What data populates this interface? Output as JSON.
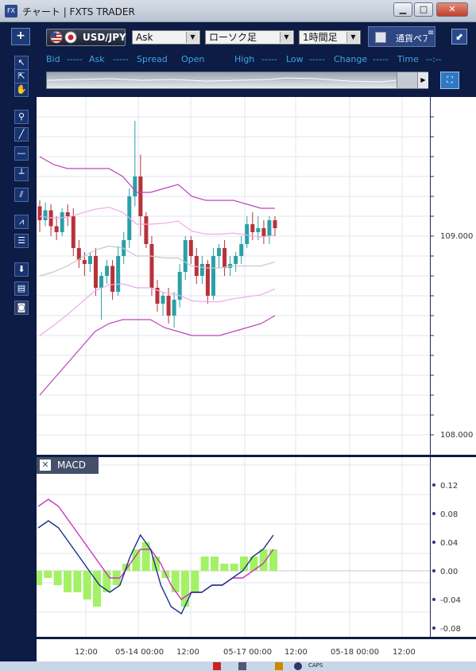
{
  "window": {
    "title": "チャート | FXTS TRADER",
    "icon": "FX"
  },
  "toolbar": {
    "symbol": "USD/JPY",
    "price_type": "Ask",
    "chart_type": "ローソク足",
    "timeframe": "1時間足",
    "currency_tab": "通貨ペア",
    "add_label": "+"
  },
  "quote": {
    "bid_label": "Bid",
    "bid": "-----",
    "ask_label": "Ask",
    "ask": "-----",
    "spread_label": "Spread",
    "open_label": "Open",
    "high_label": "High",
    "high": "-----",
    "low_label": "Low",
    "low": "-----",
    "change_label": "Change",
    "change": "-----",
    "time_label": "Time",
    "time": "--:--"
  },
  "price_axis": {
    "ticks": [
      "109.000",
      "108.000"
    ]
  },
  "macd": {
    "label": "MACD",
    "ticks": [
      "0.12",
      "0.08",
      "0.04",
      "0.00",
      "-0.04",
      "-0.08"
    ],
    "tick_values": [
      0.12,
      0.08,
      0.04,
      0.0,
      -0.04,
      -0.08
    ]
  },
  "time_axis": {
    "labels": [
      "12:00",
      "05-14 00:00",
      "12:00",
      "05-17 00:00",
      "12:00",
      "05-18 00:00",
      "12:00"
    ]
  },
  "taskbar": {
    "caps": "CAPS"
  },
  "colors": {
    "candle_up": "#2aa0a8",
    "candle_down": "#b8323a",
    "band_outer": "#bb44bb",
    "band_inner": "#f0a8e8",
    "macd_line": "#1a2f8c",
    "signal_line": "#cc33bb",
    "hist": "#a3f266"
  },
  "chart_data": {
    "type": "candlestick",
    "symbol": "USD/JPY",
    "timeframe": "1時間足",
    "y_ticks": [
      109.0,
      108.0
    ],
    "candles": [
      [
        109.15,
        109.18,
        109.02,
        109.08
      ],
      [
        109.08,
        109.17,
        109.05,
        109.13
      ],
      [
        109.13,
        109.16,
        109.0,
        109.05
      ],
      [
        109.05,
        109.1,
        108.98,
        109.02
      ],
      [
        109.02,
        109.14,
        109.0,
        109.12
      ],
      [
        109.12,
        109.16,
        109.05,
        109.1
      ],
      [
        109.1,
        109.14,
        108.9,
        108.94
      ],
      [
        108.94,
        108.98,
        108.84,
        108.88
      ],
      [
        108.88,
        108.92,
        108.8,
        108.86
      ],
      [
        108.86,
        108.92,
        108.82,
        108.9
      ],
      [
        108.9,
        108.94,
        108.7,
        108.74
      ],
      [
        108.74,
        108.82,
        108.58,
        108.8
      ],
      [
        108.8,
        108.88,
        108.76,
        108.85
      ],
      [
        108.85,
        108.88,
        108.68,
        108.72
      ],
      [
        108.72,
        108.95,
        108.7,
        108.9
      ],
      [
        108.9,
        109.02,
        108.86,
        108.98
      ],
      [
        108.98,
        109.24,
        108.94,
        109.2
      ],
      [
        109.2,
        109.58,
        109.15,
        109.3
      ],
      [
        109.3,
        109.41,
        109.0,
        109.1
      ],
      [
        109.1,
        109.12,
        108.94,
        108.96
      ],
      [
        108.96,
        109.0,
        108.7,
        108.74
      ],
      [
        108.74,
        108.78,
        108.62,
        108.66
      ],
      [
        108.66,
        108.72,
        108.6,
        108.7
      ],
      [
        108.7,
        108.74,
        108.56,
        108.6
      ],
      [
        108.6,
        108.72,
        108.54,
        108.68
      ],
      [
        108.68,
        108.86,
        108.64,
        108.82
      ],
      [
        108.82,
        109.0,
        108.78,
        108.98
      ],
      [
        108.98,
        109.0,
        108.86,
        108.9
      ],
      [
        108.9,
        108.94,
        108.76,
        108.8
      ],
      [
        108.8,
        108.9,
        108.76,
        108.86
      ],
      [
        108.86,
        108.88,
        108.66,
        108.7
      ],
      [
        108.7,
        108.94,
        108.68,
        108.9
      ],
      [
        108.9,
        108.96,
        108.84,
        108.94
      ],
      [
        108.94,
        108.98,
        108.8,
        108.84
      ],
      [
        108.84,
        108.9,
        108.8,
        108.86
      ],
      [
        108.86,
        108.92,
        108.82,
        108.9
      ],
      [
        108.9,
        109.0,
        108.86,
        108.96
      ],
      [
        108.96,
        109.1,
        108.94,
        109.06
      ],
      [
        109.06,
        109.12,
        108.98,
        109.02
      ],
      [
        109.02,
        109.1,
        108.98,
        109.04
      ],
      [
        109.04,
        109.08,
        108.96,
        109.0
      ],
      [
        109.0,
        109.1,
        108.96,
        109.08
      ],
      [
        109.08,
        109.1,
        109.0,
        109.04
      ]
    ],
    "band_outer_upper": [
      109.4,
      109.36,
      109.34,
      109.34,
      109.34,
      109.34,
      109.3,
      109.22,
      109.22,
      109.24,
      109.26,
      109.2,
      109.18,
      109.18,
      109.18,
      109.16,
      109.14,
      109.14
    ],
    "band_outer_lower": [
      108.2,
      108.28,
      108.36,
      108.44,
      108.52,
      108.56,
      108.58,
      108.58,
      108.58,
      108.54,
      108.52,
      108.5,
      108.5,
      108.5,
      108.52,
      108.54,
      108.56,
      108.6
    ],
    "macd_line": [
      0.06,
      0.07,
      0.06,
      0.04,
      0.02,
      0.0,
      -0.02,
      -0.03,
      -0.02,
      0.02,
      0.05,
      0.03,
      -0.02,
      -0.05,
      -0.06,
      -0.03,
      -0.03,
      -0.02,
      -0.02,
      -0.01,
      0.0,
      0.02,
      0.03,
      0.05
    ],
    "signal_line": [
      0.09,
      0.1,
      0.09,
      0.07,
      0.05,
      0.03,
      0.01,
      -0.01,
      -0.01,
      0.01,
      0.03,
      0.03,
      0.01,
      -0.02,
      -0.04,
      -0.03,
      -0.03,
      -0.02,
      -0.02,
      -0.01,
      -0.01,
      0.0,
      0.01,
      0.03
    ],
    "histogram": [
      -0.02,
      -0.01,
      -0.02,
      -0.03,
      -0.03,
      -0.04,
      -0.05,
      -0.03,
      -0.02,
      0.01,
      0.03,
      0.04,
      0.02,
      -0.01,
      -0.03,
      -0.05,
      -0.03,
      0.02,
      0.02,
      0.01,
      0.01,
      0.02,
      0.02,
      0.03,
      0.03
    ]
  }
}
